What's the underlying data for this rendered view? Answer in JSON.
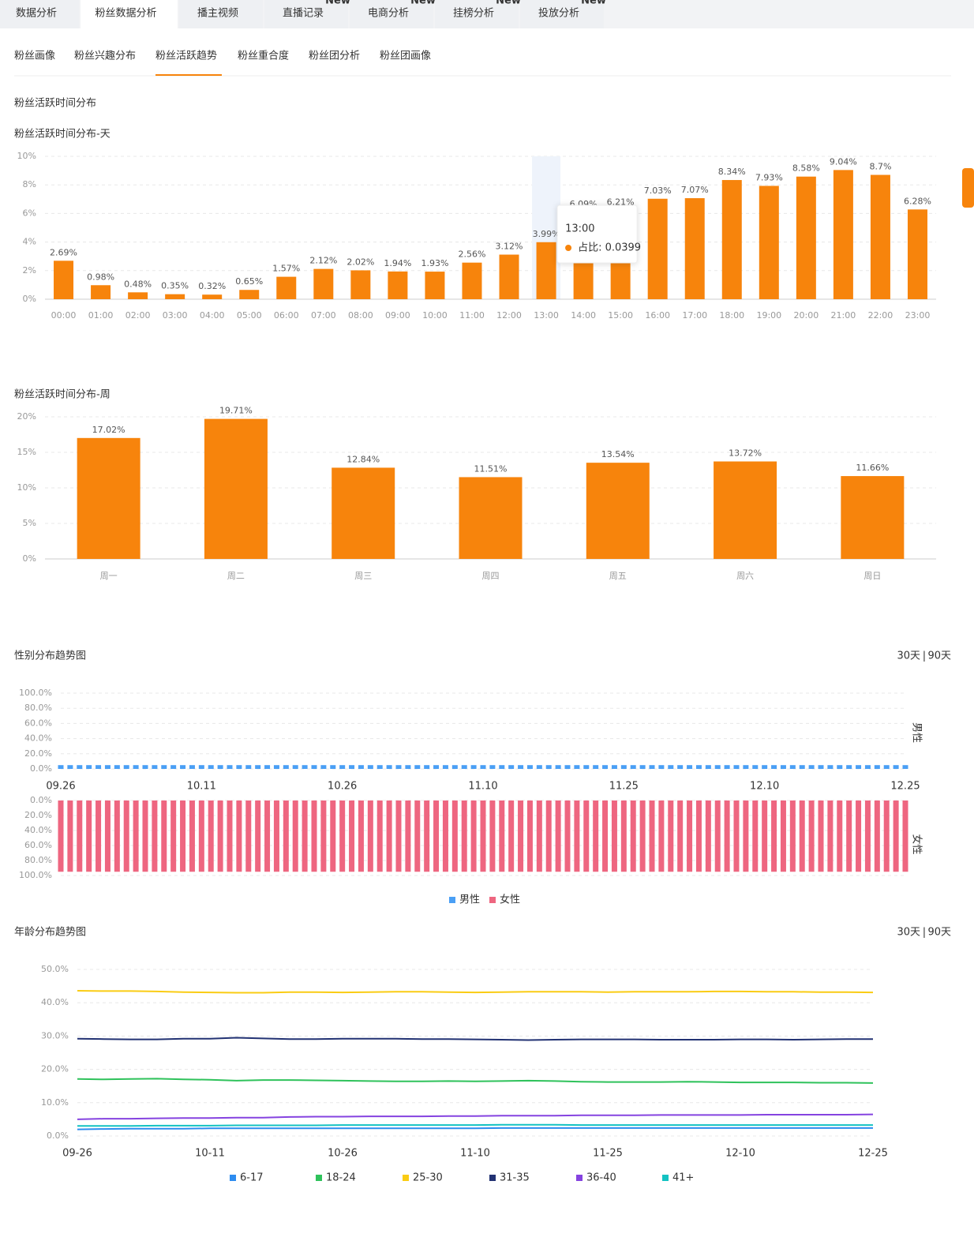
{
  "tabs": [
    {
      "label": "数据分析"
    },
    {
      "label": "粉丝数据分析"
    },
    {
      "label": "播主视频"
    },
    {
      "label": "直播记录",
      "badge": "New"
    },
    {
      "label": "电商分析",
      "badge": "New"
    },
    {
      "label": "挂榜分析",
      "badge": "New"
    },
    {
      "label": "投放分析",
      "badge": "New"
    }
  ],
  "active_tab": 1,
  "subtabs": [
    "粉丝画像",
    "粉丝兴趣分布",
    "粉丝活跃趋势",
    "粉丝重合度",
    "粉丝团分析",
    "粉丝团画像"
  ],
  "active_subtab": 2,
  "section_title": "粉丝活跃时间分布",
  "chart_data": [
    {
      "type": "bar",
      "title": "粉丝活跃时间分布-天",
      "categories": [
        "00:00",
        "01:00",
        "02:00",
        "03:00",
        "04:00",
        "05:00",
        "06:00",
        "07:00",
        "08:00",
        "09:00",
        "10:00",
        "11:00",
        "12:00",
        "13:00",
        "14:00",
        "15:00",
        "16:00",
        "17:00",
        "18:00",
        "19:00",
        "20:00",
        "21:00",
        "22:00",
        "23:00"
      ],
      "values": [
        2.69,
        0.98,
        0.48,
        0.35,
        0.32,
        0.65,
        1.57,
        2.12,
        2.02,
        1.94,
        1.93,
        2.56,
        3.12,
        3.99,
        6.09,
        6.21,
        7.03,
        7.07,
        8.34,
        7.93,
        8.58,
        9.04,
        8.7,
        6.28
      ],
      "value_labels": [
        "2.69%",
        "0.98%",
        "0.48%",
        "0.35%",
        "0.32%",
        "0.65%",
        "1.57%",
        "2.12%",
        "2.02%",
        "1.94%",
        "1.93%",
        "2.56%",
        "3.12%",
        "3.99%",
        "6.09%",
        "6.21%",
        "7.03%",
        "7.07%",
        "8.34%",
        "7.93%",
        "8.58%",
        "9.04%",
        "8.7%",
        "6.28%"
      ],
      "color": "#f7840c",
      "ylim": [
        0,
        10
      ],
      "yticks": [
        {
          "value": 0,
          "label": "0%"
        },
        {
          "value": 2,
          "label": "2%"
        },
        {
          "value": 4,
          "label": "4%"
        },
        {
          "value": 6,
          "label": "6%"
        },
        {
          "value": 8,
          "label": "8%"
        },
        {
          "value": 10,
          "label": "10%"
        }
      ],
      "grid": true,
      "tooltip": {
        "title": "13:00",
        "text": "占比: 0.0399"
      }
    },
    {
      "type": "bar",
      "title": "粉丝活跃时间分布-周",
      "categories": [
        "周一",
        "周二",
        "周三",
        "周四",
        "周五",
        "周六",
        "周日"
      ],
      "values": [
        17.02,
        19.71,
        12.84,
        11.51,
        13.54,
        13.72,
        11.66
      ],
      "value_labels": [
        "17.02%",
        "19.71%",
        "12.84%",
        "11.51%",
        "13.54%",
        "13.72%",
        "11.66%"
      ],
      "color": "#f7840c",
      "ylim": [
        0,
        20
      ],
      "yticks": [
        {
          "value": 0,
          "label": "0%"
        },
        {
          "value": 5,
          "label": "5%"
        },
        {
          "value": 10,
          "label": "10%"
        },
        {
          "value": 15,
          "label": "15%"
        },
        {
          "value": 20,
          "label": "20%"
        }
      ],
      "grid": true
    },
    {
      "type": "mirror_bar",
      "title": "性别分布趋势图",
      "toggle": {
        "options": [
          "30天",
          "90天"
        ],
        "separator": "|",
        "active": 1
      },
      "categories": [
        "09.26",
        null,
        null,
        null,
        null,
        null,
        null,
        null,
        null,
        null,
        null,
        null,
        null,
        null,
        null,
        "10.11",
        null,
        null,
        null,
        null,
        null,
        null,
        null,
        null,
        null,
        null,
        null,
        null,
        null,
        null,
        "10.26",
        null,
        null,
        null,
        null,
        null,
        null,
        null,
        null,
        null,
        null,
        null,
        null,
        null,
        null,
        "11.10",
        null,
        null,
        null,
        null,
        null,
        null,
        null,
        null,
        null,
        null,
        null,
        null,
        null,
        null,
        "11.25",
        null,
        null,
        null,
        null,
        null,
        null,
        null,
        null,
        null,
        null,
        null,
        null,
        null,
        null,
        "12.10",
        null,
        null,
        null,
        null,
        null,
        null,
        null,
        null,
        null,
        null,
        null,
        null,
        null,
        null,
        "12.25"
      ],
      "series": [
        {
          "name": "男性",
          "color": "#4a9ff5",
          "axis": "y",
          "values": [
            5,
            5,
            5,
            5,
            5,
            5,
            5,
            5,
            5,
            5,
            5,
            5,
            5,
            5,
            5,
            5,
            5,
            5,
            5,
            5,
            5,
            5,
            5,
            5,
            5,
            5,
            5,
            5,
            5,
            5,
            5,
            5,
            5,
            5,
            5,
            5,
            5,
            5,
            5,
            5,
            5,
            5,
            5,
            5,
            5,
            5,
            5,
            5,
            5,
            5,
            5,
            5,
            5,
            5,
            5,
            5,
            5,
            5,
            5,
            5,
            5,
            5,
            5,
            5,
            5,
            5,
            5,
            5,
            5,
            5,
            5,
            5,
            5,
            5,
            5,
            5,
            5,
            5,
            5,
            5,
            5,
            5,
            5,
            5,
            5,
            5,
            5,
            5,
            5,
            5,
            5
          ]
        },
        {
          "name": "女性",
          "color": "#ee6680",
          "axis": "y2",
          "values": [
            95,
            95,
            95,
            95,
            95,
            95,
            95,
            95,
            95,
            95,
            95,
            95,
            95,
            95,
            95,
            95,
            95,
            95,
            95,
            95,
            95,
            95,
            95,
            95,
            95,
            95,
            95,
            95,
            95,
            95,
            95,
            95,
            95,
            95,
            95,
            95,
            95,
            95,
            95,
            95,
            95,
            95,
            95,
            95,
            95,
            95,
            95,
            95,
            95,
            95,
            95,
            95,
            95,
            95,
            95,
            95,
            95,
            95,
            95,
            95,
            95,
            95,
            95,
            95,
            95,
            95,
            95,
            95,
            95,
            95,
            95,
            95,
            95,
            95,
            95,
            95,
            95,
            95,
            95,
            95,
            95,
            95,
            95,
            95,
            95,
            95,
            95,
            95,
            95,
            95,
            95
          ]
        }
      ],
      "ylim": [
        0,
        100
      ],
      "yticks": [
        {
          "value": 0,
          "label": "0.0%"
        },
        {
          "value": 20,
          "label": "20.0%"
        },
        {
          "value": 40,
          "label": "40.0%"
        },
        {
          "value": 60,
          "label": "60.0%"
        },
        {
          "value": 80,
          "label": "80.0%"
        },
        {
          "value": 100,
          "label": "100.0%"
        }
      ],
      "y2lim": [
        0,
        100
      ],
      "y2_inverted": true,
      "y2ticks": [
        {
          "value": 0,
          "label": "0.0%"
        },
        {
          "value": 20,
          "label": "20.0%"
        },
        {
          "value": 40,
          "label": "40.0%"
        },
        {
          "value": 60,
          "label": "60.0%"
        },
        {
          "value": 80,
          "label": "80.0%"
        },
        {
          "value": 100,
          "label": "100.0%"
        }
      ],
      "grid": true,
      "legend": "bottom"
    },
    {
      "type": "line",
      "title": "年龄分布趋势图",
      "toggle": {
        "options": [
          "30天",
          "90天"
        ],
        "separator": "|",
        "active": 1
      },
      "categories": [
        "09-26",
        null,
        null,
        null,
        null,
        "10-11",
        null,
        null,
        null,
        null,
        "10-26",
        null,
        null,
        null,
        null,
        "11-10",
        null,
        null,
        null,
        null,
        "11-25",
        null,
        null,
        null,
        null,
        "12-10",
        null,
        null,
        null,
        null,
        "12-25"
      ],
      "series": [
        {
          "name": "6-17",
          "color": "#2d8cf0",
          "values": [
            2.0,
            2.1,
            2.2,
            2.2,
            2.2,
            2.3,
            2.3,
            2.3,
            2.3,
            2.3,
            2.3,
            2.3,
            2.3,
            2.3,
            2.3,
            2.3,
            2.4,
            2.4,
            2.4,
            2.4,
            2.4,
            2.4,
            2.4,
            2.4,
            2.4,
            2.4,
            2.4,
            2.4,
            2.4,
            2.4,
            2.4
          ]
        },
        {
          "name": "18-24",
          "color": "#2fc25b",
          "values": [
            17.1,
            17.0,
            17.1,
            17.2,
            17.0,
            16.9,
            16.6,
            16.8,
            16.8,
            16.7,
            16.6,
            16.5,
            16.4,
            16.4,
            16.5,
            16.4,
            16.5,
            16.6,
            16.5,
            16.3,
            16.2,
            16.2,
            16.2,
            16.3,
            16.2,
            16.1,
            16.1,
            16.1,
            16.0,
            16.0,
            15.9
          ]
        },
        {
          "name": "25-30",
          "color": "#facc14",
          "values": [
            43.6,
            43.5,
            43.5,
            43.4,
            43.2,
            43.1,
            43.0,
            43.0,
            43.2,
            43.2,
            43.1,
            43.2,
            43.3,
            43.3,
            43.2,
            43.1,
            43.2,
            43.3,
            43.3,
            43.3,
            43.2,
            43.3,
            43.3,
            43.3,
            43.4,
            43.4,
            43.3,
            43.3,
            43.2,
            43.2,
            43.1
          ]
        },
        {
          "name": "31-35",
          "color": "#223273",
          "values": [
            29.2,
            29.1,
            29.0,
            29.0,
            29.2,
            29.2,
            29.5,
            29.3,
            29.1,
            29.1,
            29.2,
            29.2,
            29.2,
            29.1,
            29.1,
            29.0,
            28.9,
            28.8,
            28.9,
            29.0,
            29.0,
            29.0,
            28.9,
            28.9,
            28.9,
            29.0,
            29.0,
            28.9,
            29.0,
            29.1,
            29.1
          ]
        },
        {
          "name": "36-40",
          "color": "#8543e0",
          "values": [
            5.0,
            5.2,
            5.2,
            5.3,
            5.4,
            5.4,
            5.5,
            5.5,
            5.7,
            5.8,
            5.8,
            5.9,
            5.9,
            5.9,
            6.0,
            6.0,
            6.1,
            6.1,
            6.1,
            6.2,
            6.2,
            6.2,
            6.3,
            6.3,
            6.3,
            6.3,
            6.4,
            6.4,
            6.4,
            6.4,
            6.5
          ]
        },
        {
          "name": "41+",
          "color": "#13c2c2",
          "values": [
            3.0,
            3.0,
            3.0,
            3.1,
            3.1,
            3.1,
            3.2,
            3.2,
            3.2,
            3.2,
            3.3,
            3.3,
            3.3,
            3.3,
            3.3,
            3.3,
            3.4,
            3.4,
            3.4,
            3.3,
            3.3,
            3.3,
            3.3,
            3.3,
            3.3,
            3.3,
            3.3,
            3.3,
            3.3,
            3.3,
            3.3
          ]
        }
      ],
      "ylim": [
        0,
        50
      ],
      "yticks": [
        {
          "value": 0,
          "label": "0.0%"
        },
        {
          "value": 10,
          "label": "10.0%"
        },
        {
          "value": 20,
          "label": "20.0%"
        },
        {
          "value": 30,
          "label": "30.0%"
        },
        {
          "value": 40,
          "label": "40.0%"
        },
        {
          "value": 50,
          "label": "50.0%"
        }
      ],
      "grid": true,
      "legend": "bottom"
    }
  ]
}
